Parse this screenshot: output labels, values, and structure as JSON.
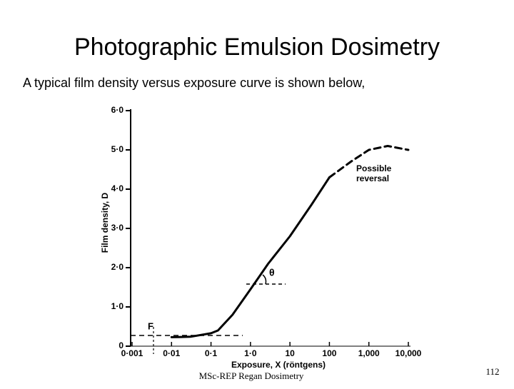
{
  "slide": {
    "title": "Photographic Emulsion Dosimetry",
    "subtitle": "A typical film density versus exposure curve is shown below,",
    "footer": "MSc-REP Regan Dosimetry",
    "page_number": "112"
  },
  "chart_data": {
    "type": "line",
    "x_label": "Exposure, X (röntgens)",
    "y_label": "Film density, D",
    "x": [
      0.01,
      0.03,
      0.1,
      0.15,
      0.35,
      1,
      2.8,
      10,
      35,
      100,
      350,
      1000,
      3000,
      10000
    ],
    "series": [
      {
        "color": "#000000",
        "style": "solid",
        "values": [
          0.23,
          0.24,
          0.33,
          0.4,
          0.8,
          1.45,
          2.1,
          2.8,
          3.6,
          4.3,
          null,
          null,
          null,
          null
        ]
      },
      {
        "color": "#000000",
        "style": "dashed",
        "values": [
          null,
          null,
          null,
          null,
          null,
          null,
          null,
          null,
          null,
          4.3,
          4.7,
          5.0,
          5.1,
          5.0
        ]
      }
    ],
    "annotations": [
      "Possible",
      "reversal",
      "θ",
      "F"
    ],
    "xscale": "log",
    "xlim": [
      0.001,
      10000
    ],
    "xticks": [
      {
        "value": 0.001,
        "label": "0·001"
      },
      {
        "value": 0.01,
        "label": "0·01"
      },
      {
        "value": 0.1,
        "label": "0·1"
      },
      {
        "value": 1,
        "label": "1·0"
      },
      10,
      100,
      {
        "value": 1000,
        "label": "1,000"
      },
      {
        "value": 10000,
        "label": "10,000"
      }
    ],
    "ylim": [
      0,
      6
    ],
    "yticks": [
      0,
      {
        "value": 1,
        "label": "1·0"
      },
      {
        "value": 2,
        "label": "2·0"
      },
      {
        "value": 3,
        "label": "3·0"
      },
      {
        "value": 4,
        "label": "4·0"
      },
      {
        "value": 5,
        "label": "5·0"
      },
      {
        "value": 6,
        "label": "6·0"
      }
    ]
  }
}
